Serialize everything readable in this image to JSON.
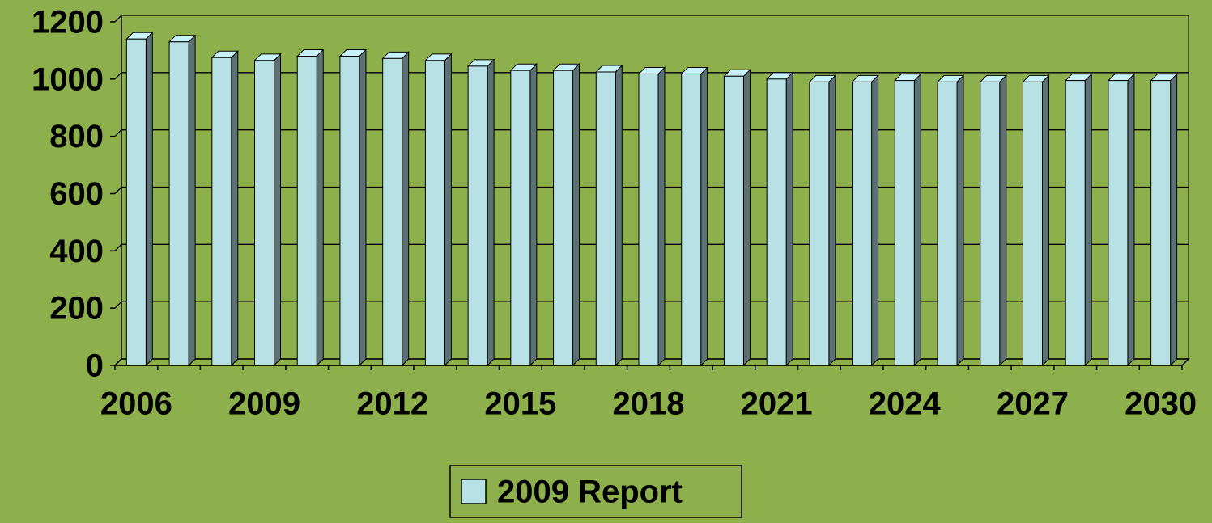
{
  "chart_data": {
    "type": "bar3d",
    "categories": [
      "2006",
      null,
      null,
      "2009",
      null,
      null,
      "2012",
      null,
      null,
      "2015",
      null,
      null,
      "2018",
      null,
      null,
      "2021",
      null,
      null,
      "2024",
      null,
      null,
      "2027",
      null,
      null,
      "2030"
    ],
    "series": [
      {
        "name": "2009 Report",
        "color": "#b8e1e6",
        "values": [
          1140,
          1130,
          1075,
          1065,
          1080,
          1080,
          1072,
          1065,
          1045,
          1030,
          1030,
          1025,
          1018,
          1018,
          1010,
          1000,
          990,
          990,
          995,
          990,
          990,
          990,
          995,
          995,
          995
        ]
      }
    ],
    "ylim": [
      0,
      1200
    ],
    "yticks": [
      0,
      200,
      400,
      600,
      800,
      1000,
      1200
    ],
    "grid": true,
    "legend": "bottom"
  }
}
